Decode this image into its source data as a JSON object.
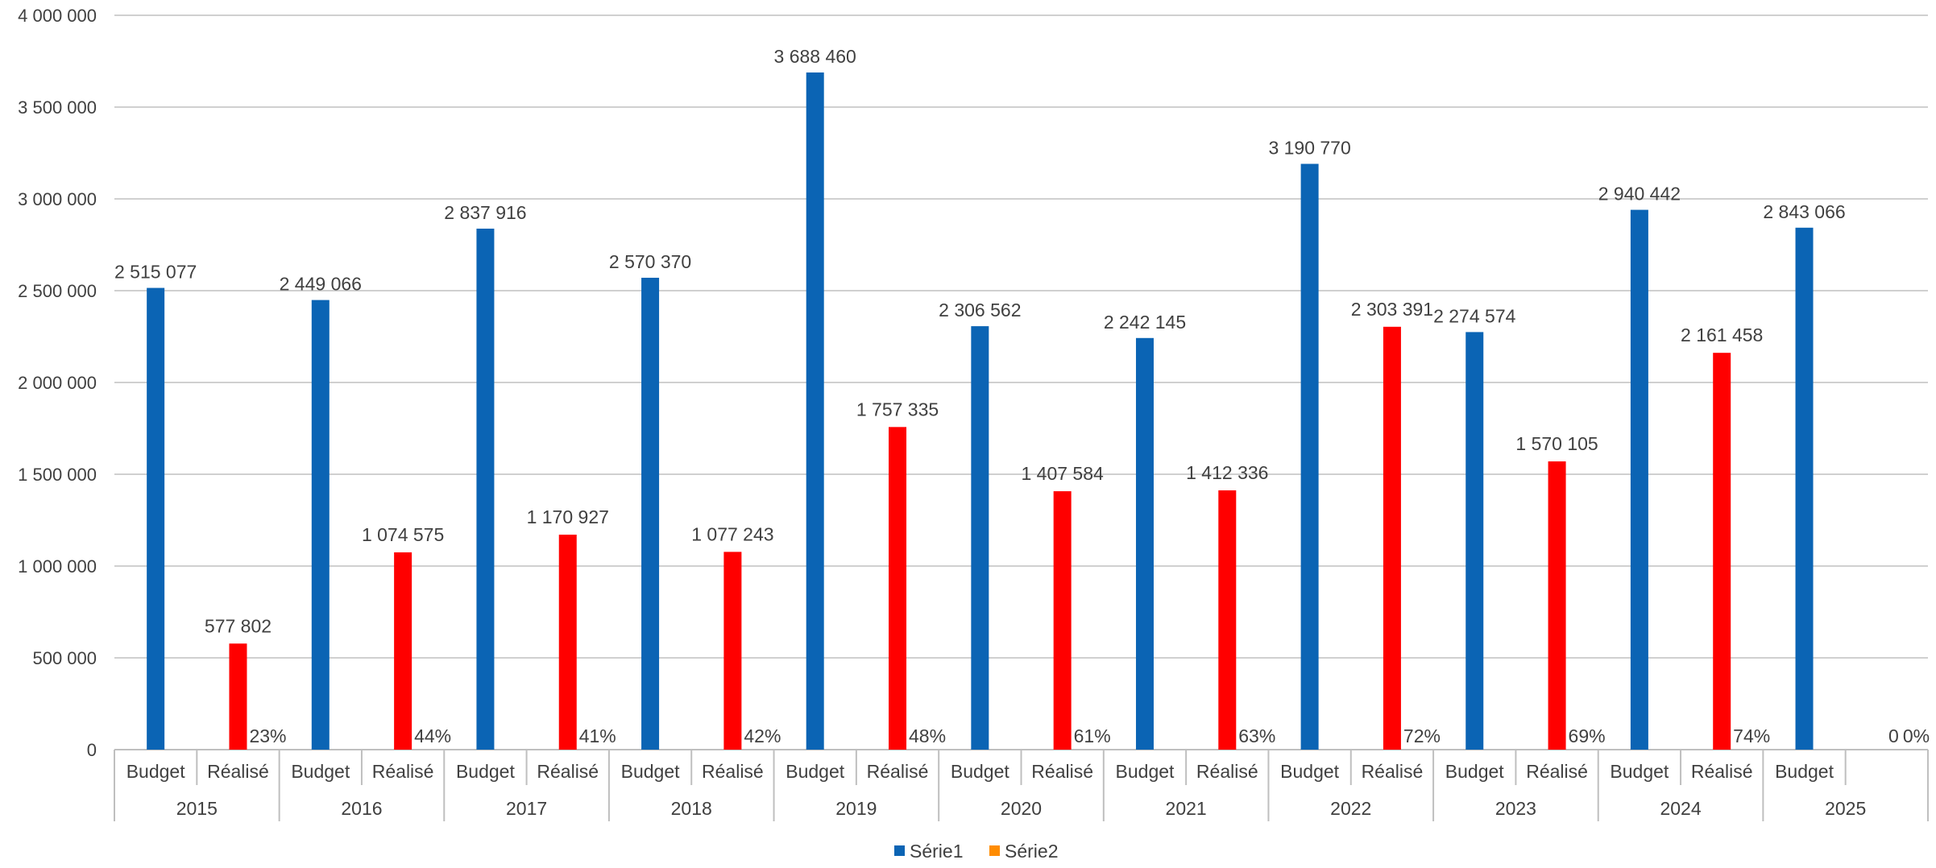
{
  "chart_data": {
    "type": "bar",
    "y_axis": {
      "min": 0,
      "max": 4000000,
      "step": 500000,
      "tick_labels": [
        "0",
        "500 000",
        "1 000 000",
        "1 500 000",
        "2 000 000",
        "2 500 000",
        "3 000 000",
        "3 500 000",
        "4 000 000"
      ]
    },
    "grid": true,
    "legend": {
      "position": "bottom",
      "entries": [
        {
          "name": "Série1",
          "color": "#0B64B4"
        },
        {
          "name": "Série2",
          "color": "#FF8C00"
        }
      ]
    },
    "colors": {
      "budget": "#0B64B4",
      "realise": "#FF0000"
    },
    "groups": [
      {
        "year": "2015",
        "budget_label": "Budget",
        "budget": 2515077,
        "budget_text": "2 515 077",
        "realise_label": "Réalisé",
        "realise": 577802,
        "realise_text": "577 802",
        "pct": "23%"
      },
      {
        "year": "2016",
        "budget_label": "Budget",
        "budget": 2449066,
        "budget_text": "2 449 066",
        "realise_label": "Réalisé",
        "realise": 1074575,
        "realise_text": "1 074 575",
        "pct": "44%"
      },
      {
        "year": "2017",
        "budget_label": "Budget",
        "budget": 2837916,
        "budget_text": "2 837 916",
        "realise_label": "Réalisé",
        "realise": 1170927,
        "realise_text": "1 170 927",
        "pct": "41%"
      },
      {
        "year": "2018",
        "budget_label": "Budget",
        "budget": 2570370,
        "budget_text": "2 570 370",
        "realise_label": "Réalisé",
        "realise": 1077243,
        "realise_text": "1 077 243",
        "pct": "42%"
      },
      {
        "year": "2019",
        "budget_label": "Budget",
        "budget": 3688460,
        "budget_text": "3 688 460",
        "realise_label": "Réalisé",
        "realise": 1757335,
        "realise_text": "1 757 335",
        "pct": "48%"
      },
      {
        "year": "2020",
        "budget_label": "Budget",
        "budget": 2306562,
        "budget_text": "2 306 562",
        "realise_label": "Réalisé",
        "realise": 1407584,
        "realise_text": "1 407 584",
        "pct": "61%"
      },
      {
        "year": "2021",
        "budget_label": "Budget",
        "budget": 2242145,
        "budget_text": "2 242 145",
        "realise_label": "Réalisé",
        "realise": 1412336,
        "realise_text": "1 412 336",
        "pct": "63%"
      },
      {
        "year": "2022",
        "budget_label": "Budget",
        "budget": 3190770,
        "budget_text": "3 190 770",
        "realise_label": "Réalisé",
        "realise": 2303391,
        "realise_text": "2 303 391",
        "pct": "72%"
      },
      {
        "year": "2023",
        "budget_label": "Budget",
        "budget": 2274574,
        "budget_text": "2 274 574",
        "realise_label": "Réalisé",
        "realise": 1570105,
        "realise_text": "1 570 105",
        "pct": "69%"
      },
      {
        "year": "2024",
        "budget_label": "Budget",
        "budget": 2940442,
        "budget_text": "2 940 442",
        "realise_label": "Réalisé",
        "realise": 2161458,
        "realise_text": "2 161 458",
        "pct": "74%"
      },
      {
        "year": "2025",
        "budget_label": "Budget",
        "budget": 2843066,
        "budget_text": "2 843 066",
        "realise_label": "",
        "realise": 0,
        "realise_text": "0",
        "pct": "0%"
      }
    ]
  }
}
